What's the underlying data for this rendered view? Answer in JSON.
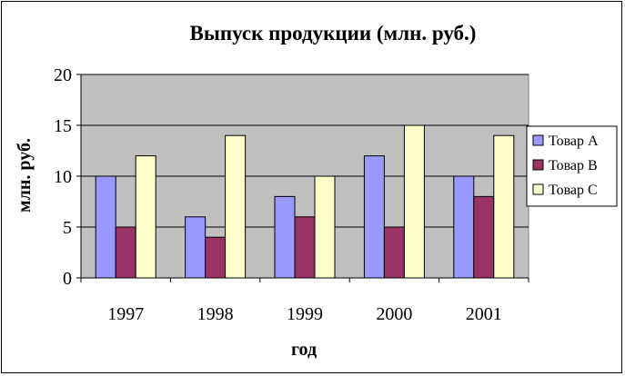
{
  "chart_data": {
    "type": "bar",
    "title": "Выпуск продукции (млн. руб.)",
    "xlabel": "год",
    "ylabel": "млн. руб.",
    "categories": [
      "1997",
      "1998",
      "1999",
      "2000",
      "2001"
    ],
    "ylim": [
      0,
      20
    ],
    "yticks": [
      "0",
      "5",
      "10",
      "15",
      "20"
    ],
    "grid": true,
    "legend_position": "right",
    "series": [
      {
        "name": "Товар A",
        "values": [
          10,
          6,
          8,
          12,
          10
        ],
        "color": "#9999FF"
      },
      {
        "name": "Товар B",
        "values": [
          5,
          4,
          6,
          5,
          8
        ],
        "color": "#993366"
      },
      {
        "name": "Товар C",
        "values": [
          12,
          14,
          10,
          15,
          14
        ],
        "color": "#FFFFCC"
      }
    ],
    "plot_background": "#C0C0C0"
  }
}
